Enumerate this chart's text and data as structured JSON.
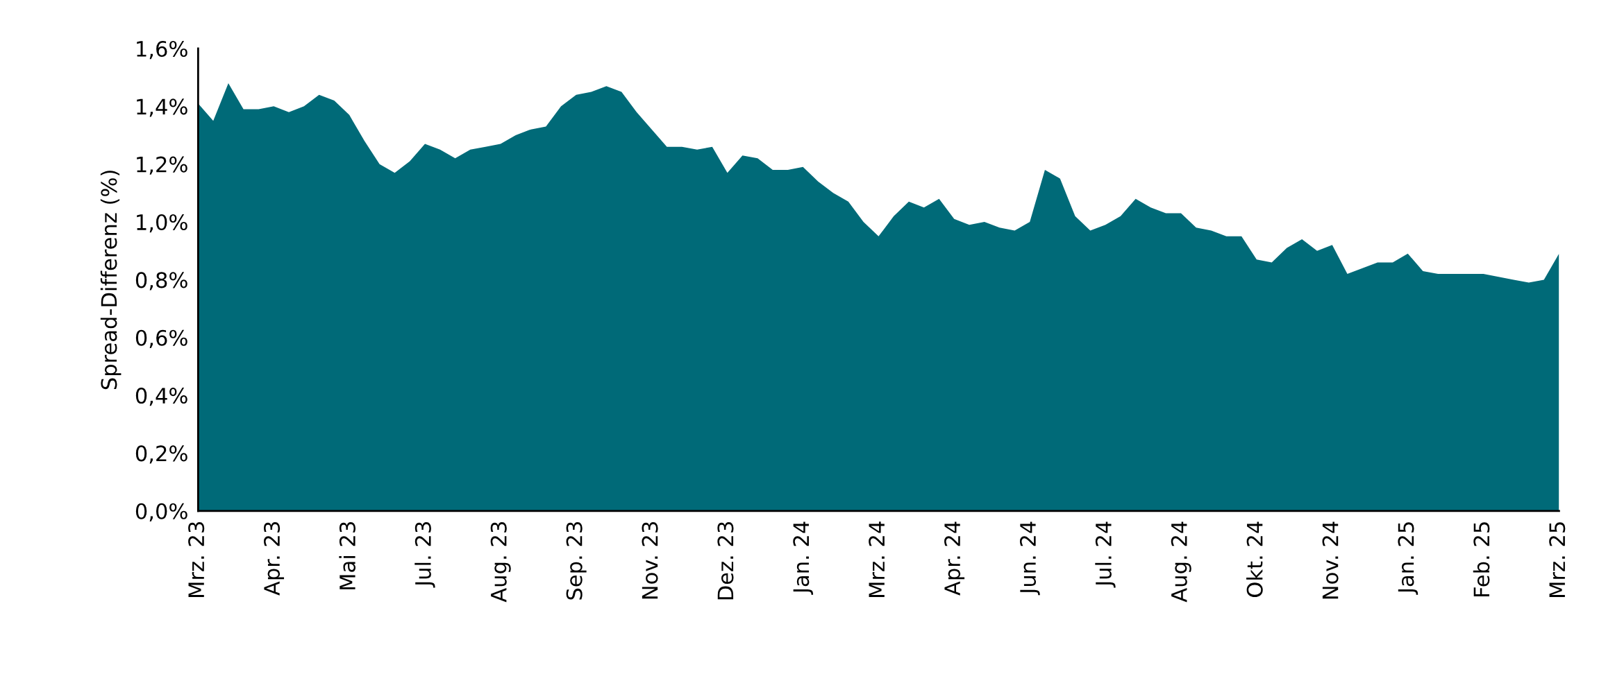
{
  "chart_data": {
    "type": "area",
    "ylabel": "Spread-Differenz (%)",
    "categories": [
      "Mrz. 23",
      null,
      null,
      null,
      null,
      "Apr. 23",
      null,
      null,
      null,
      null,
      "Mai 23",
      null,
      null,
      null,
      null,
      "Jul. 23",
      null,
      null,
      null,
      null,
      "Aug. 23",
      null,
      null,
      null,
      null,
      "Sep. 23",
      null,
      null,
      null,
      null,
      "Nov. 23",
      null,
      null,
      null,
      null,
      "Dez. 23",
      null,
      null,
      null,
      null,
      "Jan. 24",
      null,
      null,
      null,
      null,
      "Mrz. 24",
      null,
      null,
      null,
      null,
      "Apr. 24",
      null,
      null,
      null,
      null,
      "Jun. 24",
      null,
      null,
      null,
      null,
      "Jul. 24",
      null,
      null,
      null,
      null,
      "Aug. 24",
      null,
      null,
      null,
      null,
      "Okt. 24",
      null,
      null,
      null,
      null,
      "Nov. 24",
      null,
      null,
      null,
      null,
      "Jan. 25",
      null,
      null,
      null,
      null,
      "Feb. 25",
      null,
      null,
      null,
      null,
      "Mrz. 25"
    ],
    "series": [
      {
        "color": "#006a78",
        "values": [
          1.41,
          1.35,
          1.48,
          1.39,
          1.39,
          1.4,
          1.38,
          1.4,
          1.44,
          1.42,
          1.37,
          1.28,
          1.2,
          1.17,
          1.21,
          1.27,
          1.25,
          1.22,
          1.25,
          1.26,
          1.27,
          1.3,
          1.32,
          1.33,
          1.4,
          1.44,
          1.45,
          1.47,
          1.45,
          1.38,
          1.32,
          1.26,
          1.26,
          1.25,
          1.26,
          1.17,
          1.23,
          1.22,
          1.18,
          1.18,
          1.19,
          1.14,
          1.1,
          1.07,
          1.0,
          0.95,
          1.02,
          1.07,
          1.05,
          1.08,
          1.01,
          0.99,
          1.0,
          0.98,
          0.97,
          1.0,
          1.18,
          1.15,
          1.02,
          0.97,
          0.99,
          1.02,
          1.08,
          1.05,
          1.03,
          1.03,
          0.98,
          0.97,
          0.95,
          0.95,
          0.87,
          0.86,
          0.91,
          0.94,
          0.9,
          0.92,
          0.82,
          0.84,
          0.86,
          0.86,
          0.89,
          0.83,
          0.82,
          0.82,
          0.82,
          0.82,
          0.81,
          0.8,
          0.79,
          0.8,
          0.89
        ]
      }
    ],
    "ylim": [
      0,
      1.6
    ],
    "yticks": [
      {
        "value": 0,
        "label": "0,0%"
      },
      {
        "value": 0.2,
        "label": "0,2%"
      },
      {
        "value": 0.4,
        "label": "0,4%"
      },
      {
        "value": 0.6,
        "label": "0,6%"
      },
      {
        "value": 0.8,
        "label": "0,8%"
      },
      {
        "value": 1.0,
        "label": "1,0%"
      },
      {
        "value": 1.2,
        "label": "1,2%"
      },
      {
        "value": 1.4,
        "label": "1,4%"
      },
      {
        "value": 1.6,
        "label": "1,6%"
      }
    ],
    "grid": false,
    "legend": false
  }
}
